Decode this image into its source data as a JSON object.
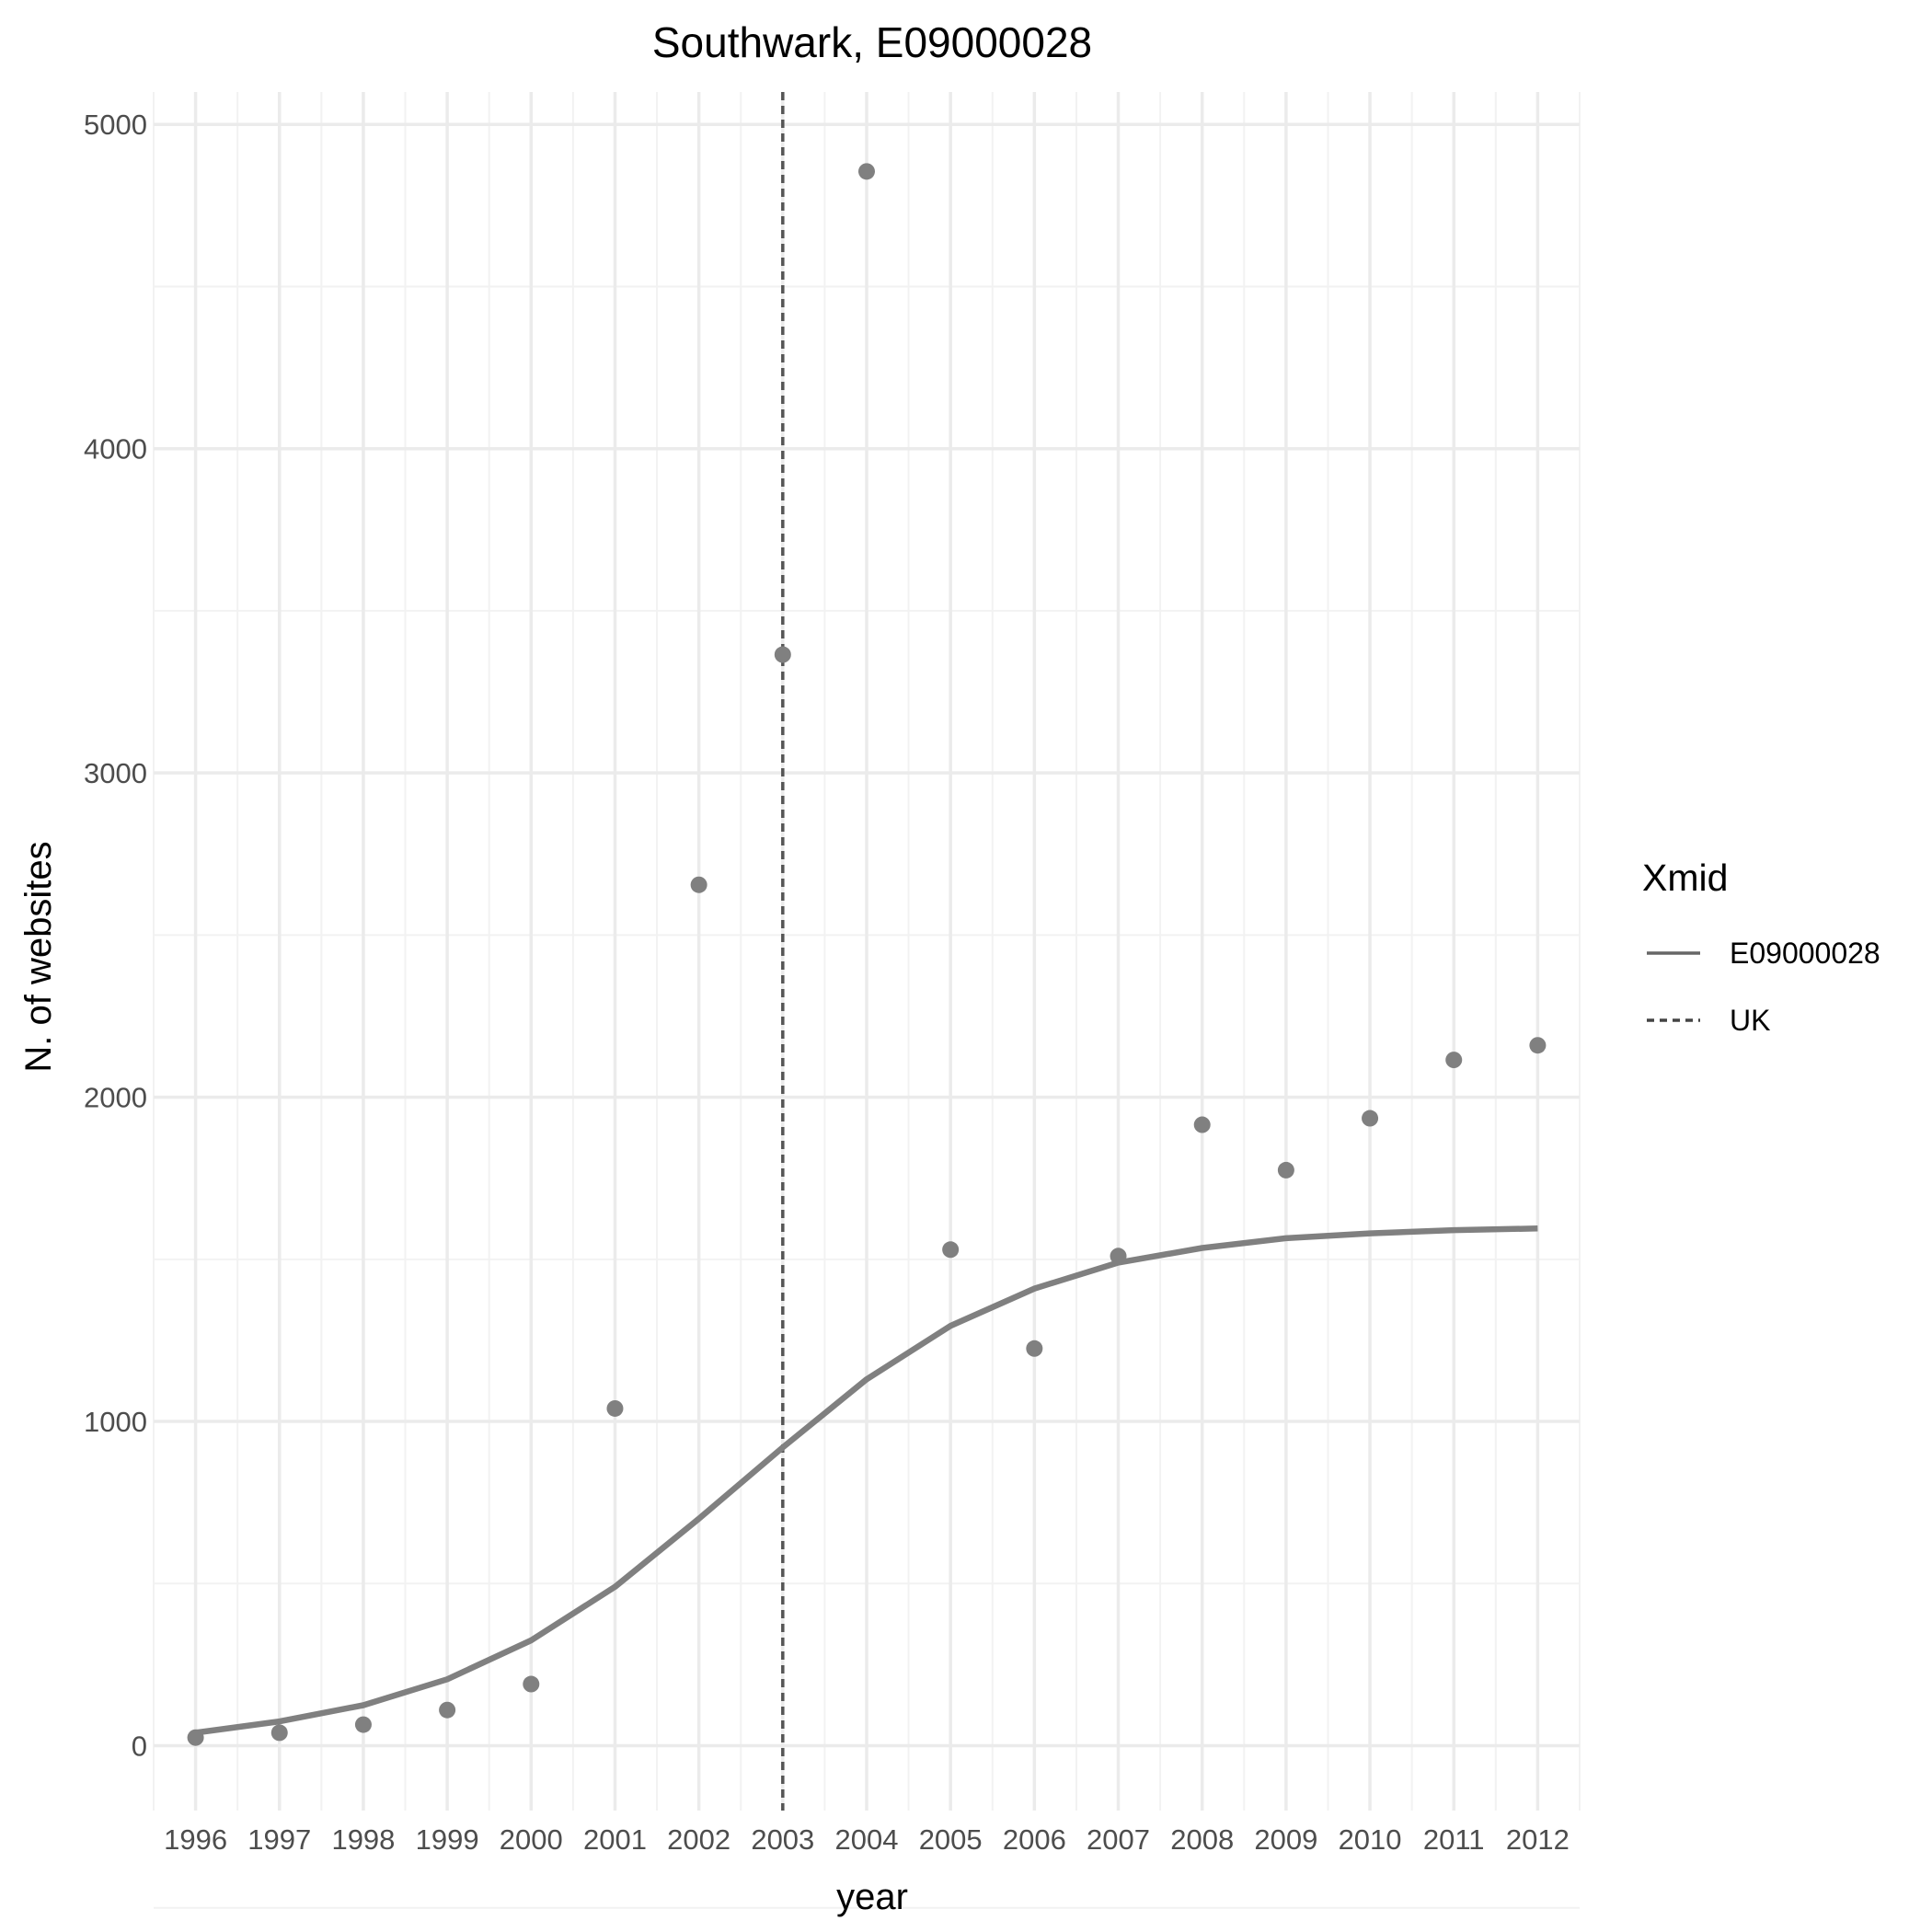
{
  "chart_data": {
    "type": "line",
    "title": "Southwark, E09000028",
    "xlabel": "year",
    "ylabel": "N. of websites",
    "xlim": [
      1995.5,
      2012.5
    ],
    "ylim": [
      -200,
      5100
    ],
    "x_ticks": [
      1996,
      1997,
      1998,
      1999,
      2000,
      2001,
      2002,
      2003,
      2004,
      2005,
      2006,
      2007,
      2008,
      2009,
      2010,
      2011,
      2012
    ],
    "x_tick_labels": [
      "1996",
      "1997",
      "1998",
      "1999",
      "2000",
      "2001",
      "2002",
      "2003",
      "2004",
      "2005",
      "2006",
      "2007",
      "2008",
      "2009",
      "2010",
      "2011",
      "2012"
    ],
    "y_ticks": [
      0,
      1000,
      2000,
      3000,
      4000,
      5000
    ],
    "y_tick_labels": [
      "0",
      "1000",
      "2000",
      "3000",
      "4000",
      "5000"
    ],
    "grid": true,
    "points": {
      "x": [
        1996,
        1997,
        1998,
        1999,
        2000,
        2001,
        2002,
        2003,
        2004,
        2005,
        2006,
        2007,
        2008,
        2009,
        2010,
        2011,
        2012
      ],
      "y": [
        25,
        40,
        65,
        110,
        190,
        1040,
        2655,
        3365,
        4855,
        1530,
        1225,
        1510,
        1915,
        1775,
        1935,
        2115,
        2160
      ],
      "color": "#808080"
    },
    "series": [
      {
        "name": "E09000028",
        "style": "solid",
        "color": "#808080",
        "x": [
          1996,
          1997,
          1998,
          1999,
          2000,
          2001,
          2002,
          2003,
          2004,
          2005,
          2006,
          2007,
          2008,
          2009,
          2010,
          2011,
          2012
        ],
        "y": [
          40,
          75,
          125,
          205,
          325,
          490,
          700,
          920,
          1130,
          1295,
          1410,
          1490,
          1535,
          1565,
          1580,
          1590,
          1595
        ]
      }
    ],
    "reference_lines": [
      {
        "name": "UK",
        "axis": "x",
        "value": 2003,
        "style": "dashed",
        "color": "#555555"
      }
    ],
    "legend": {
      "title": "Xmid",
      "position": "right",
      "entries": [
        {
          "label": "E09000028",
          "style": "solid",
          "color": "#666666"
        },
        {
          "label": "UK",
          "style": "dashed",
          "color": "#444444"
        }
      ]
    }
  }
}
